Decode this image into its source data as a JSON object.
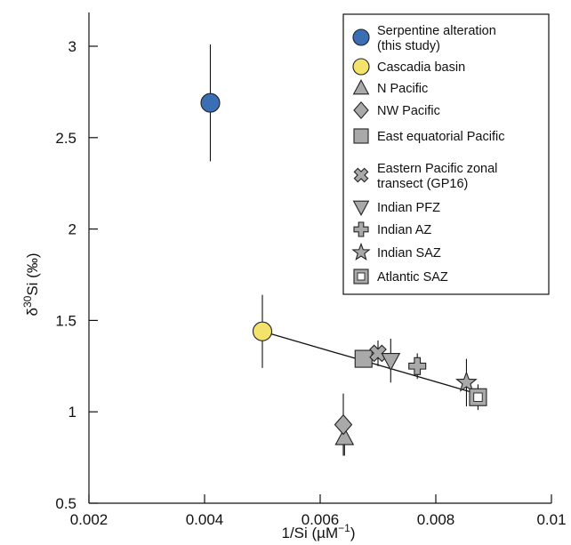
{
  "chart_data": {
    "type": "scatter",
    "xlabel": {
      "main": "1/Si (µM",
      "sup": "−1",
      "tail": ")"
    },
    "ylabel": {
      "pre": "δ",
      "sup": "30",
      "main": "Si (‰)"
    },
    "xlim": [
      0.002,
      0.01
    ],
    "ylim": [
      0.5,
      3.2
    ],
    "xticks": [
      0.002,
      0.004,
      0.006,
      0.008,
      0.01
    ],
    "xtick_labels": [
      "0.002",
      "0.004",
      "0.006",
      "0.008",
      "0.01"
    ],
    "yticks": [
      0.5,
      1,
      1.5,
      2,
      2.5,
      3
    ],
    "ytick_labels": [
      "0.5",
      "1",
      "1.5",
      "2",
      "2.5",
      "3"
    ],
    "grid": false,
    "legend_position": "top-right",
    "trend_line": {
      "x": [
        0.005,
        0.0087
      ],
      "y": [
        1.44,
        1.1
      ]
    },
    "series": [
      {
        "name": "Serpentine alteration\n(this study)",
        "marker": "circle",
        "color": "#3a6fb6",
        "points": [
          {
            "x": 0.0041,
            "y": 2.69,
            "err": 0.32
          }
        ]
      },
      {
        "name": "Cascadia basin",
        "marker": "circle",
        "color": "#f4e36a",
        "points": [
          {
            "x": 0.005,
            "y": 1.44,
            "err": 0.2
          }
        ]
      },
      {
        "name": "N Pacific",
        "marker": "triangle-up",
        "color": "#a9a9a9",
        "points": [
          {
            "x": 0.00642,
            "y": 0.86,
            "err": 0.1
          }
        ]
      },
      {
        "name": "NW Pacific",
        "marker": "diamond",
        "color": "#a9a9a9",
        "points": [
          {
            "x": 0.0064,
            "y": 0.93,
            "err": 0.17
          }
        ]
      },
      {
        "name": "East equatorial Pacific",
        "marker": "square",
        "color": "#a9a9a9",
        "points": [
          {
            "x": 0.00675,
            "y": 1.29,
            "err": 0
          }
        ]
      },
      {
        "name": "Eastern Pacific zonal\ntransect (GP16)",
        "marker": "cross-x",
        "color": "#a9a9a9",
        "points": [
          {
            "x": 0.007,
            "y": 1.32,
            "err": 0.07
          }
        ]
      },
      {
        "name": "Indian PFZ",
        "marker": "triangle-down",
        "color": "#a9a9a9",
        "points": [
          {
            "x": 0.00722,
            "y": 1.28,
            "err": 0.12
          }
        ]
      },
      {
        "name": "Indian AZ",
        "marker": "plus",
        "color": "#a9a9a9",
        "points": [
          {
            "x": 0.00768,
            "y": 1.25,
            "err": 0.07
          }
        ]
      },
      {
        "name": "Indian SAZ",
        "marker": "star",
        "color": "#a9a9a9",
        "points": [
          {
            "x": 0.00853,
            "y": 1.16,
            "err": 0.13
          }
        ]
      },
      {
        "name": "Atlantic SAZ",
        "marker": "square-open",
        "color": "#a9a9a9",
        "points": [
          {
            "x": 0.00873,
            "y": 1.08,
            "err": 0.07
          }
        ]
      }
    ]
  }
}
